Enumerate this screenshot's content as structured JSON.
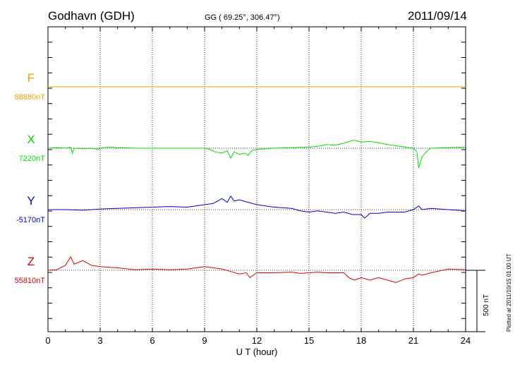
{
  "header": {
    "station": "Godhavn (GDH)",
    "coords": "GG ( 69.25°, 306.47°)",
    "date": "2011/09/14"
  },
  "footer_note": "Plotted at 2011/10/15 01:00 UT",
  "scale_bar_label": "500 nT",
  "colors": {
    "F": "#f0a000",
    "X": "#00e000",
    "Y": "#0000e0",
    "Z": "#e00000",
    "axis": "#000000"
  },
  "chart_data": {
    "type": "line",
    "xlabel": "U T (hour)",
    "xlim": [
      0,
      24
    ],
    "xticks": [
      0,
      3,
      6,
      9,
      12,
      15,
      18,
      21,
      24
    ],
    "tick_labels": [
      "0",
      "3",
      "6",
      "9",
      "12",
      "15",
      "18",
      "21",
      "24"
    ],
    "scale_nT": 500,
    "series": [
      {
        "name": "F",
        "baseline_label": "88880nT",
        "x": [
          0,
          24
        ],
        "y": [
          0,
          0
        ]
      },
      {
        "name": "X",
        "baseline_label": "7220nT",
        "x": [
          0,
          0.5,
          1,
          1.3,
          1.4,
          1.5,
          2,
          2.5,
          2.9,
          3,
          3.5,
          4,
          5,
          6,
          7,
          8,
          9,
          9.3,
          9.6,
          10,
          10.3,
          10.5,
          10.7,
          11,
          11.3,
          11.5,
          11.7,
          12,
          13,
          14,
          15,
          15.5,
          16,
          16.5,
          17,
          17.3,
          17.6,
          18,
          18.5,
          19,
          19.5,
          20,
          20.5,
          21,
          21.2,
          21.3,
          21.5,
          21.8,
          22,
          23,
          24
        ],
        "y": [
          0,
          5,
          0,
          10,
          -40,
          0,
          -5,
          0,
          -10,
          0,
          10,
          5,
          0,
          0,
          0,
          0,
          0,
          -10,
          -30,
          -40,
          -20,
          -80,
          -30,
          -50,
          -40,
          -60,
          -20,
          -10,
          0,
          5,
          10,
          15,
          30,
          25,
          40,
          55,
          65,
          50,
          55,
          45,
          30,
          20,
          10,
          0,
          -30,
          -160,
          -70,
          -20,
          0,
          5,
          10
        ]
      },
      {
        "name": "Y",
        "baseline_label": "-5170nT",
        "x": [
          0,
          1,
          2,
          3,
          4,
          5,
          6,
          7,
          8,
          8.5,
          9,
          9.5,
          10,
          10.3,
          10.5,
          10.7,
          11,
          11.5,
          12,
          12.5,
          13,
          14,
          14.5,
          15,
          15.5,
          16,
          16.5,
          17,
          17.5,
          18,
          18.2,
          18.5,
          19,
          19.5,
          20,
          20.5,
          21,
          21.3,
          21.5,
          22,
          23,
          24
        ],
        "y": [
          0,
          0,
          -5,
          5,
          10,
          15,
          20,
          25,
          20,
          30,
          40,
          50,
          90,
          60,
          110,
          70,
          80,
          60,
          40,
          30,
          20,
          10,
          -10,
          -20,
          -10,
          -20,
          -30,
          -20,
          -40,
          -40,
          -70,
          -30,
          -30,
          -20,
          -20,
          -20,
          0,
          30,
          0,
          10,
          0,
          -10
        ]
      },
      {
        "name": "Z",
        "baseline_label": "55810nT",
        "x": [
          0,
          0.5,
          1,
          1.3,
          1.5,
          2,
          2.5,
          3,
          4,
          5,
          6,
          7,
          8,
          9,
          9.5,
          10,
          10.5,
          11,
          11.4,
          11.6,
          12,
          13,
          14,
          14.5,
          15,
          15.5,
          16,
          17,
          17.3,
          17.6,
          18,
          18.5,
          19,
          19.5,
          20,
          20.5,
          21,
          21.3,
          21.5,
          22,
          23,
          24
        ],
        "y": [
          0,
          5,
          40,
          110,
          50,
          80,
          40,
          30,
          20,
          5,
          10,
          5,
          10,
          30,
          20,
          10,
          -10,
          -30,
          -20,
          -60,
          -20,
          -20,
          -15,
          -25,
          -20,
          -15,
          -20,
          -20,
          -60,
          -80,
          -60,
          -80,
          -60,
          -80,
          -100,
          -70,
          -60,
          -30,
          -40,
          -20,
          10,
          5
        ]
      }
    ]
  }
}
